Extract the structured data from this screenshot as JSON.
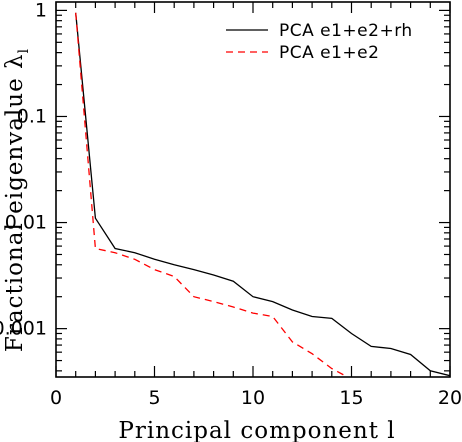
{
  "chart_data": {
    "type": "line",
    "xlabel": "Principal component l",
    "ylabel": "Fractional eigenvalue λ",
    "ylabel_subscript": "l",
    "xlim": [
      0,
      20
    ],
    "ylim": [
      0.00035,
      1.2
    ],
    "yscale": "log",
    "x_ticks": [
      {
        "value": 0,
        "label": "0"
      },
      {
        "value": 5,
        "label": "5"
      },
      {
        "value": 10,
        "label": "10"
      },
      {
        "value": 15,
        "label": "15"
      },
      {
        "value": 20,
        "label": "20"
      }
    ],
    "y_ticks": [
      {
        "value": 1,
        "label": "1"
      },
      {
        "value": 0.1,
        "label": "0.1"
      },
      {
        "value": 0.01,
        "label": "0.01"
      },
      {
        "value": 0.001,
        "label": "0.001"
      }
    ],
    "grid": false,
    "legend_position": "top-right",
    "series": [
      {
        "name": "PCA e1+e2+rh",
        "color": "#000000",
        "dash": "solid",
        "x": [
          1,
          2,
          3,
          4,
          5,
          6,
          7,
          8,
          9,
          10,
          11,
          12,
          13,
          14,
          15,
          16,
          17,
          18,
          19,
          20
        ],
        "y": [
          0.95,
          0.011,
          0.0057,
          0.0052,
          0.0045,
          0.004,
          0.0036,
          0.0032,
          0.0028,
          0.002,
          0.0018,
          0.0015,
          0.0013,
          0.00125,
          0.0009,
          0.00068,
          0.00065,
          0.00057,
          0.0004,
          0.00036
        ]
      },
      {
        "name": "PCA e1+e2",
        "color": "#ff0000",
        "dash": "dashed",
        "x": [
          1,
          2,
          3,
          4,
          5,
          6,
          7,
          8,
          9,
          10,
          11,
          12,
          13,
          14,
          14.8
        ],
        "y": [
          0.95,
          0.0057,
          0.0052,
          0.0045,
          0.0036,
          0.0031,
          0.002,
          0.0018,
          0.0016,
          0.0014,
          0.0013,
          0.00075,
          0.00058,
          0.00042,
          0.00035
        ]
      }
    ]
  }
}
